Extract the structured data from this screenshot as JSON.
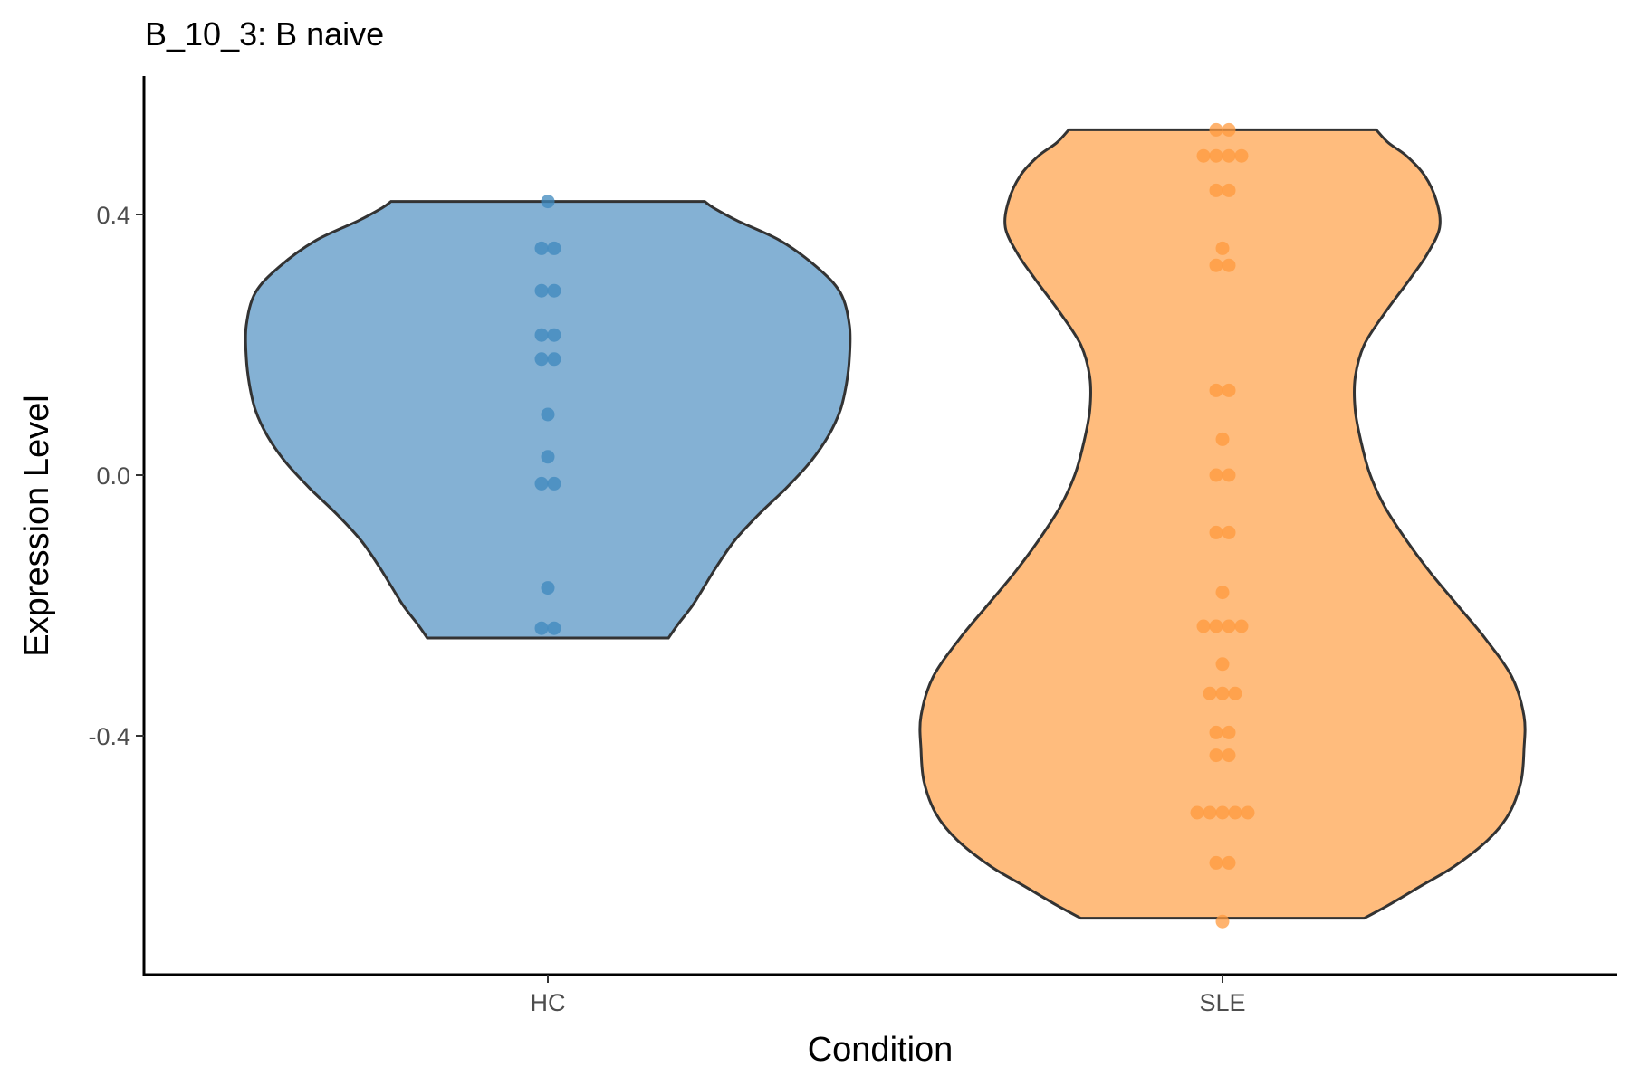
{
  "chart_data": {
    "type": "violin",
    "title": "B_10_3: B naive",
    "xlabel": "Condition",
    "ylabel": "Expression Level",
    "categories": [
      "HC",
      "SLE"
    ],
    "yticks": [
      -0.4,
      0.0,
      0.4
    ],
    "ytick_labels": [
      "-0.4",
      "0.0",
      "0.4"
    ],
    "ylim": [
      -0.76,
      0.61
    ],
    "grid": false,
    "legend": "none",
    "colors": {
      "HC": "#6fa3cc",
      "SLE": "#ffb066",
      "HC_points": "#3d88be",
      "SLE_points": "#ff9a3e",
      "outline": "#333333"
    },
    "series": [
      {
        "category": "HC",
        "range": [
          -0.25,
          0.42
        ],
        "density": [
          [
            -0.25,
            0.4
          ],
          [
            -0.23,
            0.43
          ],
          [
            -0.2,
            0.48
          ],
          [
            -0.17,
            0.52
          ],
          [
            -0.14,
            0.56
          ],
          [
            -0.1,
            0.62
          ],
          [
            -0.06,
            0.7
          ],
          [
            -0.02,
            0.79
          ],
          [
            0.02,
            0.87
          ],
          [
            0.06,
            0.93
          ],
          [
            0.1,
            0.97
          ],
          [
            0.14,
            0.99
          ],
          [
            0.18,
            1.0
          ],
          [
            0.23,
            1.0
          ],
          [
            0.28,
            0.97
          ],
          [
            0.32,
            0.89
          ],
          [
            0.36,
            0.77
          ],
          [
            0.39,
            0.63
          ],
          [
            0.41,
            0.55
          ],
          [
            0.42,
            0.52
          ]
        ],
        "points": [
          0.42,
          0.348,
          0.348,
          0.283,
          0.283,
          0.215,
          0.215,
          0.178,
          0.178,
          0.093,
          0.028,
          -0.013,
          -0.013,
          -0.173,
          -0.235,
          -0.235
        ]
      },
      {
        "category": "SLE",
        "range": [
          -0.68,
          0.53
        ],
        "density": [
          [
            -0.68,
            0.47
          ],
          [
            -0.66,
            0.55
          ],
          [
            -0.63,
            0.66
          ],
          [
            -0.6,
            0.77
          ],
          [
            -0.56,
            0.88
          ],
          [
            -0.52,
            0.95
          ],
          [
            -0.47,
            0.99
          ],
          [
            -0.42,
            1.0
          ],
          [
            -0.37,
            1.0
          ],
          [
            -0.31,
            0.96
          ],
          [
            -0.25,
            0.87
          ],
          [
            -0.2,
            0.78
          ],
          [
            -0.15,
            0.69
          ],
          [
            -0.1,
            0.61
          ],
          [
            -0.05,
            0.54
          ],
          [
            0.0,
            0.49
          ],
          [
            0.05,
            0.46
          ],
          [
            0.1,
            0.44
          ],
          [
            0.15,
            0.44
          ],
          [
            0.2,
            0.47
          ],
          [
            0.25,
            0.54
          ],
          [
            0.3,
            0.62
          ],
          [
            0.34,
            0.68
          ],
          [
            0.38,
            0.72
          ],
          [
            0.42,
            0.71
          ],
          [
            0.46,
            0.67
          ],
          [
            0.49,
            0.61
          ],
          [
            0.51,
            0.55
          ],
          [
            0.53,
            0.51
          ]
        ],
        "points": [
          0.53,
          0.53,
          0.49,
          0.49,
          0.49,
          0.49,
          0.437,
          0.437,
          0.348,
          0.322,
          0.322,
          0.13,
          0.13,
          0.055,
          0.0,
          0.0,
          -0.088,
          -0.088,
          -0.18,
          -0.232,
          -0.232,
          -0.232,
          -0.232,
          -0.29,
          -0.335,
          -0.335,
          -0.335,
          -0.395,
          -0.395,
          -0.43,
          -0.43,
          -0.518,
          -0.518,
          -0.518,
          -0.518,
          -0.518,
          -0.595,
          -0.595,
          -0.685
        ]
      }
    ]
  }
}
